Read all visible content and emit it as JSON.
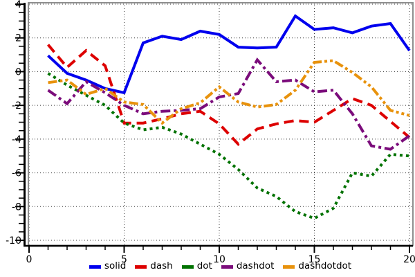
{
  "chart_data": {
    "type": "line",
    "title": "",
    "xlabel": "",
    "ylabel": "",
    "xlim": [
      0,
      20
    ],
    "ylim": [
      -10,
      4
    ],
    "x_ticks": [
      0,
      5,
      10,
      15,
      20
    ],
    "y_ticks": [
      4,
      2,
      0,
      -2,
      -4,
      -6,
      -8,
      -10
    ],
    "x_minor_step": 1,
    "y_minor_step": 0.5,
    "grid": "dotted",
    "legend_position": "bottom-center",
    "x": [
      1,
      2,
      3,
      4,
      5,
      6,
      7,
      8,
      9,
      10,
      11,
      12,
      13,
      14,
      15,
      16,
      17,
      18,
      19,
      20
    ],
    "series": [
      {
        "name": "solid",
        "color": "#0000ee",
        "style": "solid",
        "values": [
          0.95,
          -0.1,
          -0.5,
          -1.0,
          -1.25,
          1.7,
          2.1,
          1.9,
          2.4,
          2.2,
          1.45,
          1.4,
          1.45,
          3.3,
          2.5,
          2.6,
          2.3,
          2.7,
          2.85,
          1.25
        ]
      },
      {
        "name": "dash",
        "color": "#dd0000",
        "style": "dash",
        "values": [
          1.6,
          0.25,
          1.25,
          0.35,
          -3.05,
          -3.05,
          -2.8,
          -2.5,
          -2.35,
          -3.1,
          -4.3,
          -3.4,
          -3.1,
          -2.9,
          -3.0,
          -2.3,
          -1.6,
          -2.0,
          -2.95,
          -3.9
        ]
      },
      {
        "name": "dot",
        "color": "#007200",
        "style": "dot",
        "values": [
          -0.1,
          -0.8,
          -1.4,
          -2.0,
          -3.05,
          -3.45,
          -3.3,
          -3.7,
          -4.3,
          -4.9,
          -5.8,
          -6.9,
          -7.4,
          -8.3,
          -8.7,
          -8.1,
          -6.0,
          -6.2,
          -4.9,
          -5.0
        ]
      },
      {
        "name": "dashdot",
        "color": "#7b0c7b",
        "style": "dashdot",
        "values": [
          -1.1,
          -1.9,
          -0.6,
          -1.25,
          -2.0,
          -2.5,
          -2.35,
          -2.3,
          -2.2,
          -1.5,
          -1.3,
          0.7,
          -0.6,
          -0.5,
          -1.2,
          -1.1,
          -2.5,
          -4.4,
          -4.6,
          -3.8
        ]
      },
      {
        "name": "dashdotdot",
        "color": "#e8920c",
        "style": "dashdotdot",
        "values": [
          -0.65,
          -0.5,
          -1.35,
          -1.0,
          -1.8,
          -1.95,
          -3.05,
          -2.2,
          -1.85,
          -0.9,
          -1.8,
          -2.1,
          -1.95,
          -1.1,
          0.55,
          0.65,
          -0.05,
          -0.9,
          -2.3,
          -2.6
        ]
      }
    ]
  },
  "colors": {
    "background": "#ffffff",
    "plot_border": "#8e8e8e",
    "axis": "#000000",
    "grid": "#333333",
    "text": "#000000"
  }
}
